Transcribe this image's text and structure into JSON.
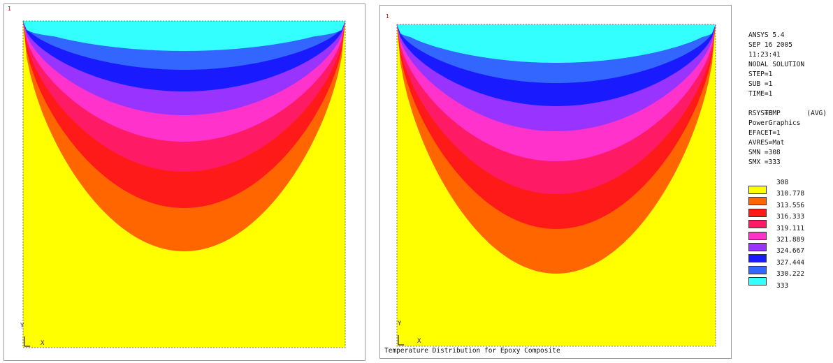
{
  "left_panel": {
    "window_number": "1",
    "axis_y": "Y",
    "axis_x": "X"
  },
  "right_panel": {
    "window_number": "1",
    "axis_y": "Y",
    "axis_x": "X",
    "caption": "Temperature Distribution for Epoxy Composite"
  },
  "info": {
    "program": "ANSYS 5.4",
    "date": "SEP 16 2005",
    "time": "11:23:41",
    "solution": "NODAL SOLUTION",
    "step": "STEP=1",
    "sub": "SUB =1",
    "time_value": "TIME=1",
    "temp_label": "TEMP",
    "temp_avg": "(AVG)",
    "rsys": "RSYS=0",
    "graphics": "PowerGraphics",
    "efacet": "EFACET=1",
    "avres": "AVRES=Mat",
    "smn": "SMN =308",
    "smx": "SMX =333"
  },
  "legend": {
    "colors": [
      "#ffff00",
      "#ff6600",
      "#ff1a1a",
      "#ff1a66",
      "#ff33cc",
      "#9933ff",
      "#1a1aff",
      "#3366ff",
      "#33ffff"
    ],
    "labels": [
      "308",
      "310.778",
      "313.556",
      "316.333",
      "319.111",
      "321.889",
      "324.667",
      "327.444",
      "330.222",
      "333"
    ]
  }
}
